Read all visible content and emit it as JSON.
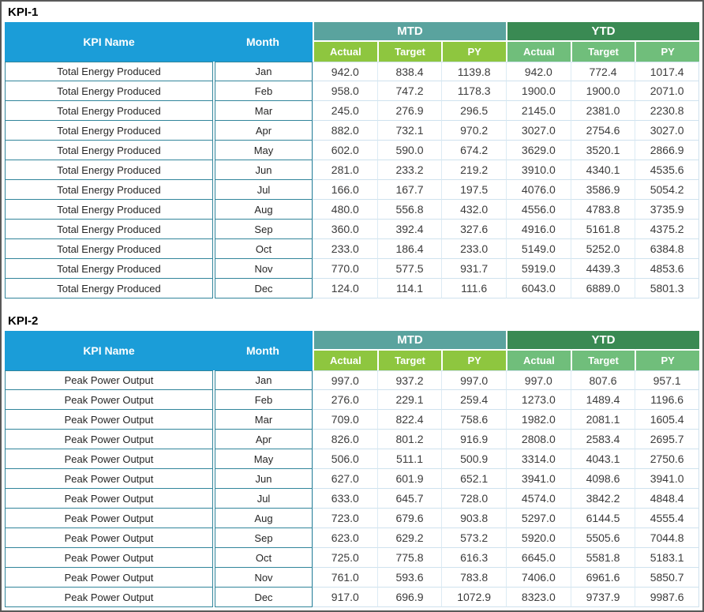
{
  "colors": {
    "header_blue": "#1B9DD8",
    "mtd_band_teal": "#5AA39E",
    "ytd_band_green": "#3A8A53",
    "mtd_subheader_green": "#8EC63F",
    "ytd_subheader_green": "#70BE7B",
    "cell_border_teal": "#31859B",
    "value_border_light": "#CFE2EE",
    "frame_gray": "#595959"
  },
  "tables": [
    {
      "title": "KPI-1",
      "headers": {
        "kpi_name": "KPI Name",
        "month": "Month",
        "mtd": "MTD",
        "ytd": "YTD",
        "sub": [
          "Actual",
          "Target",
          "PY"
        ]
      },
      "rows": [
        {
          "kpi": "Total Energy Produced",
          "month": "Jan",
          "values": [
            "942.0",
            "838.4",
            "1139.8",
            "942.0",
            "772.4",
            "1017.4"
          ]
        },
        {
          "kpi": "Total Energy Produced",
          "month": "Feb",
          "values": [
            "958.0",
            "747.2",
            "1178.3",
            "1900.0",
            "1900.0",
            "2071.0"
          ]
        },
        {
          "kpi": "Total Energy Produced",
          "month": "Mar",
          "values": [
            "245.0",
            "276.9",
            "296.5",
            "2145.0",
            "2381.0",
            "2230.8"
          ]
        },
        {
          "kpi": "Total Energy Produced",
          "month": "Apr",
          "values": [
            "882.0",
            "732.1",
            "970.2",
            "3027.0",
            "2754.6",
            "3027.0"
          ]
        },
        {
          "kpi": "Total Energy Produced",
          "month": "May",
          "values": [
            "602.0",
            "590.0",
            "674.2",
            "3629.0",
            "3520.1",
            "2866.9"
          ]
        },
        {
          "kpi": "Total Energy Produced",
          "month": "Jun",
          "values": [
            "281.0",
            "233.2",
            "219.2",
            "3910.0",
            "4340.1",
            "4535.6"
          ]
        },
        {
          "kpi": "Total Energy Produced",
          "month": "Jul",
          "values": [
            "166.0",
            "167.7",
            "197.5",
            "4076.0",
            "3586.9",
            "5054.2"
          ]
        },
        {
          "kpi": "Total Energy Produced",
          "month": "Aug",
          "values": [
            "480.0",
            "556.8",
            "432.0",
            "4556.0",
            "4783.8",
            "3735.9"
          ]
        },
        {
          "kpi": "Total Energy Produced",
          "month": "Sep",
          "values": [
            "360.0",
            "392.4",
            "327.6",
            "4916.0",
            "5161.8",
            "4375.2"
          ]
        },
        {
          "kpi": "Total Energy Produced",
          "month": "Oct",
          "values": [
            "233.0",
            "186.4",
            "233.0",
            "5149.0",
            "5252.0",
            "6384.8"
          ]
        },
        {
          "kpi": "Total Energy Produced",
          "month": "Nov",
          "values": [
            "770.0",
            "577.5",
            "931.7",
            "5919.0",
            "4439.3",
            "4853.6"
          ]
        },
        {
          "kpi": "Total Energy Produced",
          "month": "Dec",
          "values": [
            "124.0",
            "114.1",
            "111.6",
            "6043.0",
            "6889.0",
            "5801.3"
          ]
        }
      ]
    },
    {
      "title": "KPI-2",
      "headers": {
        "kpi_name": "KPI Name",
        "month": "Month",
        "mtd": "MTD",
        "ytd": "YTD",
        "sub": [
          "Actual",
          "Target",
          "PY"
        ]
      },
      "rows": [
        {
          "kpi": "Peak Power Output",
          "month": "Jan",
          "values": [
            "997.0",
            "937.2",
            "997.0",
            "997.0",
            "807.6",
            "957.1"
          ]
        },
        {
          "kpi": "Peak Power Output",
          "month": "Feb",
          "values": [
            "276.0",
            "229.1",
            "259.4",
            "1273.0",
            "1489.4",
            "1196.6"
          ]
        },
        {
          "kpi": "Peak Power Output",
          "month": "Mar",
          "values": [
            "709.0",
            "822.4",
            "758.6",
            "1982.0",
            "2081.1",
            "1605.4"
          ]
        },
        {
          "kpi": "Peak Power Output",
          "month": "Apr",
          "values": [
            "826.0",
            "801.2",
            "916.9",
            "2808.0",
            "2583.4",
            "2695.7"
          ]
        },
        {
          "kpi": "Peak Power Output",
          "month": "May",
          "values": [
            "506.0",
            "511.1",
            "500.9",
            "3314.0",
            "4043.1",
            "2750.6"
          ]
        },
        {
          "kpi": "Peak Power Output",
          "month": "Jun",
          "values": [
            "627.0",
            "601.9",
            "652.1",
            "3941.0",
            "4098.6",
            "3941.0"
          ]
        },
        {
          "kpi": "Peak Power Output",
          "month": "Jul",
          "values": [
            "633.0",
            "645.7",
            "728.0",
            "4574.0",
            "3842.2",
            "4848.4"
          ]
        },
        {
          "kpi": "Peak Power Output",
          "month": "Aug",
          "values": [
            "723.0",
            "679.6",
            "903.8",
            "5297.0",
            "6144.5",
            "4555.4"
          ]
        },
        {
          "kpi": "Peak Power Output",
          "month": "Sep",
          "values": [
            "623.0",
            "629.2",
            "573.2",
            "5920.0",
            "5505.6",
            "7044.8"
          ]
        },
        {
          "kpi": "Peak Power Output",
          "month": "Oct",
          "values": [
            "725.0",
            "775.8",
            "616.3",
            "6645.0",
            "5581.8",
            "5183.1"
          ]
        },
        {
          "kpi": "Peak Power Output",
          "month": "Nov",
          "values": [
            "761.0",
            "593.6",
            "783.8",
            "7406.0",
            "6961.6",
            "5850.7"
          ]
        },
        {
          "kpi": "Peak Power Output",
          "month": "Dec",
          "values": [
            "917.0",
            "696.9",
            "1072.9",
            "8323.0",
            "9737.9",
            "9987.6"
          ]
        }
      ]
    }
  ]
}
